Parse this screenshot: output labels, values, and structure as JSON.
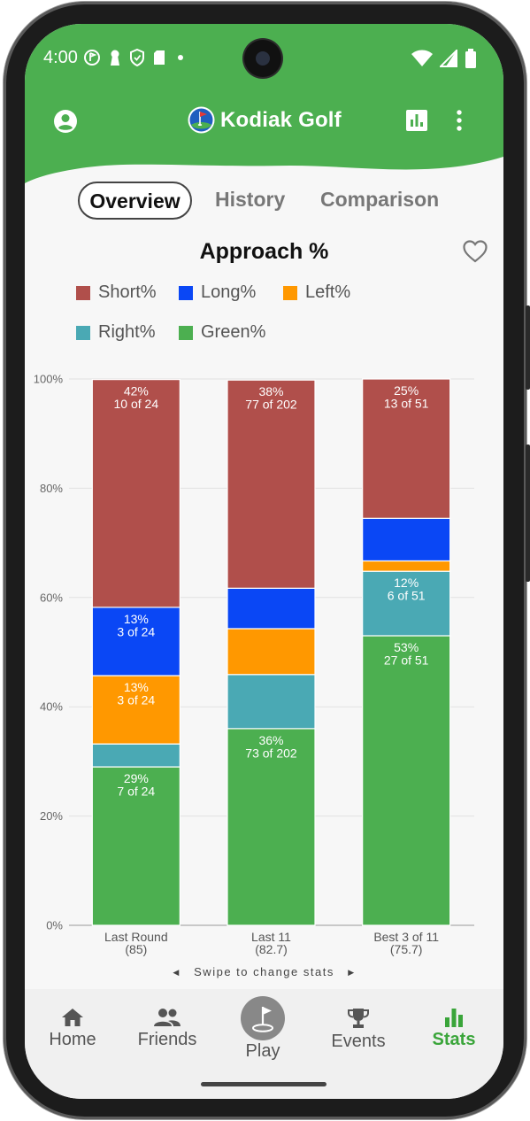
{
  "status_bar": {
    "time": "4:00"
  },
  "app_bar": {
    "title": "Kodiak Golf"
  },
  "tabs": [
    {
      "label": "Overview",
      "active": true
    },
    {
      "label": "History",
      "active": false
    },
    {
      "label": "Comparison",
      "active": false
    }
  ],
  "chart_title": "Approach %",
  "colors": {
    "header_green": "#4caf50",
    "short": "#b04f4b",
    "long": "#0a47f5",
    "left": "#ff9800",
    "right": "#4aa9b4",
    "green": "#4caf50",
    "active_nav": "#3aa53a"
  },
  "legend": [
    {
      "label": "Short%",
      "color": "#b04f4b"
    },
    {
      "label": "Long%",
      "color": "#0a47f5"
    },
    {
      "label": "Left%",
      "color": "#ff9800"
    },
    {
      "label": "Right%",
      "color": "#4aa9b4"
    },
    {
      "label": "Green%",
      "color": "#4caf50"
    }
  ],
  "chart_data": {
    "type": "bar",
    "stacked": true,
    "title": "Approach %",
    "xlabel": "",
    "ylabel": "",
    "ylim": [
      0,
      100
    ],
    "y_ticks": [
      "0%",
      "20%",
      "40%",
      "60%",
      "80%",
      "100%"
    ],
    "categories": [
      {
        "label": "Last Round",
        "sublabel": "(85)"
      },
      {
        "label": "Last 11",
        "sublabel": "(82.7)"
      },
      {
        "label": "Best 3 of 11",
        "sublabel": "(75.7)"
      }
    ],
    "series": [
      {
        "name": "Green%",
        "color": "#4caf50",
        "values": [
          29,
          36,
          53
        ],
        "labels": [
          [
            "29%",
            "7 of 24"
          ],
          [
            "36%",
            "73 of 202"
          ],
          [
            "53%",
            "27 of 51"
          ]
        ]
      },
      {
        "name": "Right%",
        "color": "#4aa9b4",
        "values": [
          4.2,
          9.9,
          11.8
        ],
        "labels": [
          null,
          null,
          [
            "12%",
            "6 of 51"
          ]
        ]
      },
      {
        "name": "Left%",
        "color": "#ff9800",
        "values": [
          12.5,
          8.4,
          1.9
        ],
        "labels": [
          [
            "13%",
            "3 of 24"
          ],
          null,
          null
        ]
      },
      {
        "name": "Long%",
        "color": "#0a47f5",
        "values": [
          12.5,
          7.4,
          7.8
        ],
        "labels": [
          [
            "13%",
            "3 of 24"
          ],
          null,
          null
        ]
      },
      {
        "name": "Short%",
        "color": "#b04f4b",
        "values": [
          41.7,
          38.1,
          25.5
        ],
        "labels": [
          [
            "42%",
            "10 of 24"
          ],
          [
            "38%",
            "77 of 202"
          ],
          [
            "25%",
            "13 of 51"
          ]
        ]
      }
    ],
    "legend_position": "top",
    "grid": true
  },
  "swipe_hint": "Swipe to change stats",
  "bottom_nav": [
    {
      "label": "Home",
      "icon": "home-icon",
      "active": false
    },
    {
      "label": "Friends",
      "icon": "friends-icon",
      "active": false
    },
    {
      "label": "Play",
      "icon": "golf-flag-icon",
      "active": false
    },
    {
      "label": "Events",
      "icon": "trophy-icon",
      "active": false
    },
    {
      "label": "Stats",
      "icon": "bar-chart-icon",
      "active": true
    }
  ]
}
